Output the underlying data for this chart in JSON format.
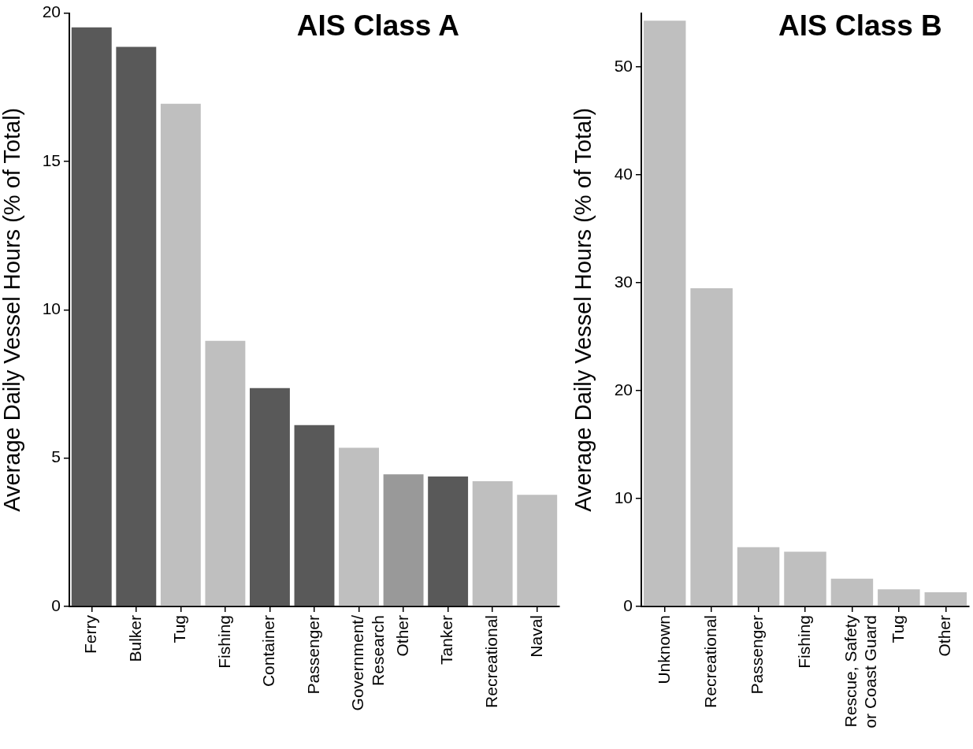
{
  "chart_data": [
    {
      "type": "bar",
      "title": "AIS Class A",
      "ylabel": "Average Daily Vessel Hours (% of Total)",
      "categories": [
        "Ferry",
        "Bulker",
        "Tug",
        "Fishing",
        "Container",
        "Passenger",
        "Government/\nResearch",
        "Other",
        "Tanker",
        "Recreational",
        "Naval"
      ],
      "values": [
        19.52,
        18.86,
        16.94,
        8.95,
        7.36,
        6.11,
        5.35,
        4.45,
        4.38,
        4.22,
        3.76
      ],
      "colors": [
        "#595959",
        "#595959",
        "#bfbfbf",
        "#bfbfbf",
        "#595959",
        "#595959",
        "#bfbfbf",
        "#999999",
        "#595959",
        "#bfbfbf",
        "#bfbfbf"
      ],
      "ylim": [
        0,
        20
      ],
      "yticks": [
        0,
        5,
        10,
        15,
        20
      ]
    },
    {
      "type": "bar",
      "title": "AIS Class B",
      "ylabel": "Average Daily Vessel Hours (% of Total)",
      "categories": [
        "Unknown",
        "Recreational",
        "Passenger",
        "Fishing",
        "Rescue, Safety\nor Coast Guard",
        "Tug",
        "Other"
      ],
      "values": [
        54.3,
        29.5,
        5.5,
        5.08,
        2.58,
        1.58,
        1.31
      ],
      "colors": [
        "#bfbfbf",
        "#bfbfbf",
        "#bfbfbf",
        "#bfbfbf",
        "#bfbfbf",
        "#bfbfbf",
        "#bfbfbf"
      ],
      "ylim": [
        0,
        55
      ],
      "yticks": [
        0,
        10,
        20,
        30,
        40,
        50
      ]
    }
  ]
}
